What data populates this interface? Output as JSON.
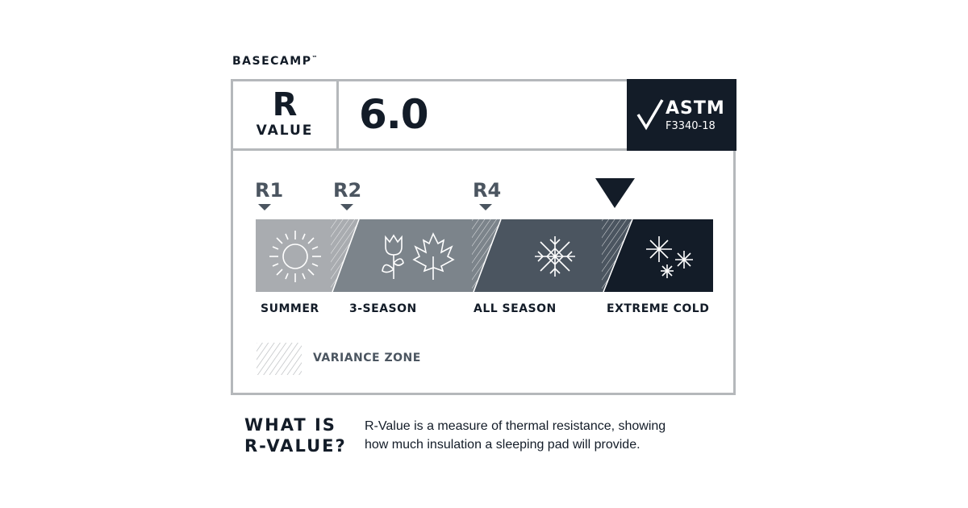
{
  "brand": {
    "name": "BASECAMP",
    "mark": "™"
  },
  "rating": {
    "r_label": "R",
    "value_label": "VALUE",
    "value": "6.0",
    "marker_value": 6.0
  },
  "certification": {
    "icon": "checkmark-icon",
    "title": "ASTM",
    "standard": "F3340-18"
  },
  "scale": {
    "markers": [
      {
        "label": "R1"
      },
      {
        "label": "R2"
      },
      {
        "label": "R4"
      }
    ],
    "zones": [
      {
        "label": "SUMMER",
        "color": "#a9acb0",
        "icon": "sun-icon"
      },
      {
        "label": "3-SEASON",
        "color": "#7c848b",
        "icon": "tulip-and-maple-leaf-icon"
      },
      {
        "label": "ALL SEASON",
        "color": "#4b5560",
        "icon": "snowflake-icon"
      },
      {
        "label": "EXTREME COLD",
        "color": "#131c28",
        "icon": "snowflakes-icon"
      }
    ],
    "legend": {
      "label": "VARIANCE ZONE"
    }
  },
  "info": {
    "heading_line1": "WHAT IS",
    "heading_line2": "R-VALUE?",
    "text_line1": "R-Value is a measure of thermal resistance, showing",
    "text_line2": "how much insulation a sleeping pad will provide."
  }
}
